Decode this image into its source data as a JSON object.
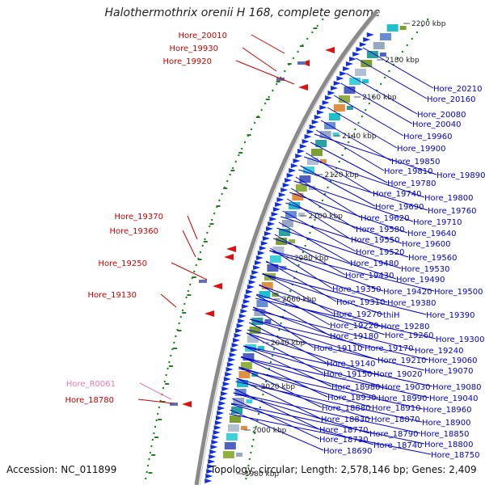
{
  "title": "Halothermothrix orenii H 168, complete genome",
  "footer": {
    "accession": "Accession: NC_011899",
    "topology": "Topology: circular; Length: 2,578,146 bp; Genes: 2,409"
  },
  "colors": {
    "left_labels": "#cc0000",
    "right_labels": "#0000cc",
    "rna_label": "#e87ab0",
    "forward_arrows": "#1030e0",
    "reverse_arrows": "#e01010",
    "gc_dots": "#1a8a1a",
    "backbone": "#808080"
  },
  "ticks": [
    "2200 kbp",
    "2180 kbp",
    "2160 kbp",
    "2140 kbp",
    "2120 kbp",
    "2100 kbp",
    "2080 kbp",
    "2060 kbp",
    "2040 kbp",
    "2020 kbp",
    "2000 kbp",
    "1980 kbp"
  ],
  "left_labels": [
    "Hore_20010",
    "Hore_19930",
    "Hore_19920",
    "Hore_19370",
    "Hore_19360",
    "Hore_19250",
    "Hore_19130",
    "Hore_R0061",
    "Hore_18780"
  ],
  "right_labels": [
    "Hore_20210",
    "Hore_20160",
    "Hore_20080",
    "Hore_20040",
    "Hore_19960",
    "Hore_19900",
    "Hore_19850",
    "Hore_19810",
    "Hore_19890",
    "Hore_19780",
    "Hore_19740",
    "Hore_19800",
    "Hore_19690",
    "Hore_19760",
    "Hore_19620",
    "Hore_19710",
    "Hore_19580",
    "Hore_19640",
    "Hore_19550",
    "Hore_19600",
    "Hore_19520",
    "Hore_19560",
    "Hore_19480",
    "Hore_19530",
    "Hore_19430",
    "Hore_19490",
    "Hore_19350",
    "Hore_19420",
    "Hore_19500",
    "Hore_19310",
    "Hore_19380",
    "Hore_19270",
    "thiH",
    "Hore_19390",
    "Hore_19220",
    "Hore_19280",
    "Hore_19180",
    "Hore_19260",
    "Hore_19300",
    "Hore_19110",
    "Hore_19170",
    "Hore_19240",
    "Hore_19140",
    "Hore_19210",
    "Hore_19060",
    "Hore_19150",
    "Hore_19020",
    "Hore_19070",
    "Hore_18980",
    "Hore_19030",
    "Hore_19080",
    "Hore_18930",
    "Hore_18990",
    "Hore_19040",
    "Hore_18880",
    "Hore_18910",
    "Hore_18960",
    "Hore_18830",
    "Hore_18870",
    "Hore_18900",
    "Hore_18770",
    "Hore_18790",
    "Hore_18850",
    "Hore_18730",
    "Hore_18740",
    "Hore_18800",
    "Hore_18690",
    "Hore_18750"
  ]
}
